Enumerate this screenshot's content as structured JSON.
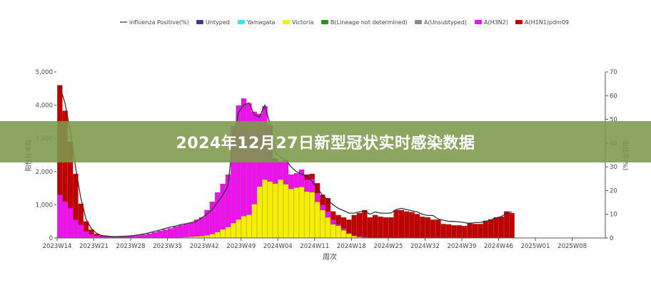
{
  "banner": {
    "title": "2024年12月27日新型冠状实时感染数据"
  },
  "chart_data": {
    "type": "bar",
    "stacked": true,
    "xlabel": "周次",
    "ylabel": "阳性标本数",
    "y2label": "阳性率(%)",
    "ylim": [
      0,
      5000
    ],
    "y2lim": [
      0,
      70
    ],
    "yticks": [
      "0",
      "1,000",
      "2,000",
      "3,000",
      "4,000",
      "5,000"
    ],
    "y2ticks": [
      "0",
      "10",
      "20",
      "30",
      "40",
      "50",
      "60",
      "70"
    ],
    "xticks": [
      "2023W14",
      "2023W21",
      "2023W28",
      "2023W35",
      "2023W42",
      "2023W49",
      "2024W04",
      "2024W11",
      "2024W18",
      "2024W25",
      "2024W32",
      "2024W39",
      "2024W46",
      "2025W01",
      "2025W08"
    ],
    "x_range": [
      "2023W14",
      "2025W12"
    ],
    "categories_range": [
      "2023W14",
      "2024W48"
    ],
    "legend_position": "top",
    "grid": false,
    "line_series": {
      "name": "influenza Positive(%)",
      "color": "#333333",
      "axis": "right",
      "values": [
        64,
        57,
        45,
        30,
        17,
        8,
        4,
        2,
        1,
        0.8,
        0.6,
        0.6,
        0.7,
        0.8,
        1,
        1.3,
        1.7,
        2.2,
        2.8,
        3.3,
        4,
        4.6,
        5,
        5.6,
        6,
        6.5,
        7,
        8.5,
        10,
        12,
        15,
        18,
        22,
        42,
        53,
        56,
        57,
        52,
        51,
        56,
        48,
        36,
        34,
        33,
        30,
        28,
        27,
        26,
        24,
        21,
        18,
        16,
        14,
        12.5,
        11.5,
        10.5,
        10.5,
        11,
        11.5,
        10,
        11,
        10.5,
        10.5,
        10.5,
        12,
        12.5,
        12,
        11.5,
        11,
        10,
        9.5,
        9.5,
        8,
        7.5,
        7,
        7,
        6.8,
        6.5,
        6,
        6.5,
        6.5,
        7,
        7.5,
        8.5,
        9,
        10.5,
        11
      ]
    },
    "series": [
      {
        "name": "Untyped",
        "color": "#3f3a8c",
        "values": []
      },
      {
        "name": "Yamagata",
        "color": "#33e6f0",
        "values": []
      },
      {
        "name": "Victoria",
        "color": "#f5f000",
        "values": [
          0,
          0,
          0,
          0,
          0,
          0,
          0,
          0,
          0,
          0,
          0,
          0,
          0,
          0,
          0,
          0,
          0,
          0,
          0,
          0,
          0,
          0,
          0,
          20,
          30,
          40,
          50,
          60,
          80,
          120,
          180,
          260,
          330,
          450,
          560,
          660,
          700,
          1020,
          1550,
          1760,
          1700,
          1640,
          1760,
          1620,
          1480,
          1520,
          1540,
          1400,
          1380,
          1090,
          840,
          620,
          410,
          370,
          230,
          130,
          60,
          30,
          20,
          10,
          0,
          0,
          0,
          0,
          0,
          0,
          0,
          0,
          0,
          0,
          0,
          0,
          0,
          0,
          0,
          0,
          0,
          0,
          0,
          0,
          0,
          0,
          0,
          0,
          0,
          0,
          0
        ]
      },
      {
        "name": "B(Lineage not determined)",
        "color": "#1f9a1f",
        "values": []
      },
      {
        "name": "A(Unsubtyped)",
        "color": "#8a8a8a",
        "values": []
      },
      {
        "name": "A(H3N2)",
        "color": "#ee10ee",
        "values": [
          1300,
          1100,
          900,
          550,
          400,
          200,
          110,
          70,
          50,
          40,
          40,
          40,
          40,
          50,
          60,
          80,
          100,
          130,
          170,
          210,
          250,
          290,
          340,
          360,
          390,
          420,
          500,
          560,
          760,
          970,
          1190,
          1370,
          1580,
          2920,
          3430,
          3540,
          3360,
          2780,
          2190,
          2210,
          1700,
          760,
          540,
          720,
          430,
          430,
          520,
          360,
          400,
          260,
          160,
          180,
          140,
          40,
          60,
          20,
          20,
          20,
          10,
          0,
          0,
          0,
          0,
          0,
          0,
          0,
          0,
          0,
          0,
          0,
          0,
          0,
          0,
          0,
          0,
          0,
          0,
          0,
          0,
          0,
          0,
          0,
          0,
          0,
          0,
          0,
          0
        ]
      },
      {
        "name": "A(H1N1)pdm09",
        "color": "#c00000",
        "values": [
          3300,
          2730,
          2000,
          1380,
          630,
          300,
          140,
          50,
          20,
          10,
          0,
          0,
          0,
          0,
          0,
          0,
          0,
          0,
          0,
          0,
          0,
          0,
          0,
          0,
          0,
          0,
          0,
          0,
          0,
          0,
          0,
          0,
          0,
          0,
          0,
          0,
          0,
          0,
          0,
          0,
          0,
          0,
          0,
          0,
          0,
          0,
          0,
          150,
          150,
          300,
          300,
          400,
          250,
          280,
          330,
          400,
          610,
          700,
          810,
          610,
          690,
          640,
          620,
          620,
          840,
          840,
          800,
          780,
          720,
          640,
          620,
          550,
          550,
          420,
          410,
          380,
          380,
          360,
          460,
          420,
          420,
          520,
          560,
          620,
          640,
          800,
          750
        ]
      }
    ]
  }
}
